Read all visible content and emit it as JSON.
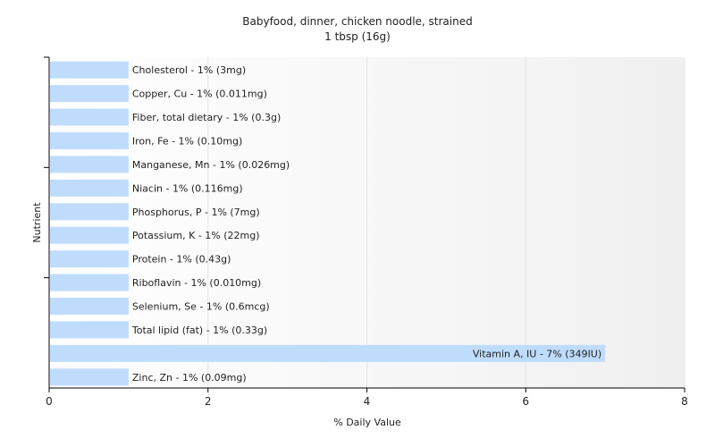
{
  "chart_data": {
    "type": "bar",
    "orientation": "horizontal",
    "title": "Babyfood, dinner, chicken noodle, strained",
    "subtitle": "1 tbsp (16g)",
    "xlabel": "% Daily Value",
    "ylabel": "Nutrient",
    "xlim": [
      0,
      8
    ],
    "xticks": [
      0,
      2,
      4,
      6,
      8
    ],
    "grid": true,
    "bar_color": "#bfdcfd",
    "categories": [
      "Cholesterol",
      "Copper, Cu",
      "Fiber, total dietary",
      "Iron, Fe",
      "Manganese, Mn",
      "Niacin",
      "Phosphorus, P",
      "Potassium, K",
      "Protein",
      "Riboflavin",
      "Selenium, Se",
      "Total lipid (fat)",
      "Vitamin A, IU",
      "Zinc, Zn"
    ],
    "values": [
      1,
      1,
      1,
      1,
      1,
      1,
      1,
      1,
      1,
      1,
      1,
      1,
      7,
      1
    ],
    "labels": [
      "Cholesterol - 1% (3mg)",
      "Copper, Cu - 1% (0.011mg)",
      "Fiber, total dietary - 1% (0.3g)",
      "Iron, Fe - 1% (0.10mg)",
      "Manganese, Mn - 1% (0.026mg)",
      "Niacin - 1% (0.116mg)",
      "Phosphorus, P - 1% (7mg)",
      "Potassium, K - 1% (22mg)",
      "Protein - 1% (0.43g)",
      "Riboflavin - 1% (0.010mg)",
      "Selenium, Se - 1% (0.6mcg)",
      "Total lipid (fat) - 1% (0.33g)",
      "Vitamin A, IU - 7% (349IU)",
      "Zinc, Zn - 1% (0.09mg)"
    ]
  }
}
